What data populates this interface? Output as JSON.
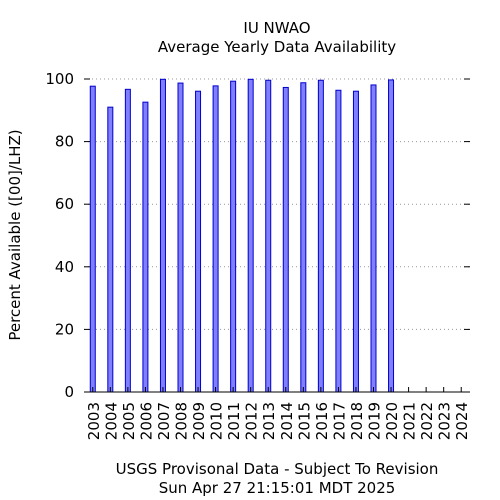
{
  "chart_data": {
    "type": "bar",
    "title": "IU NWAO",
    "subtitle": "Average Yearly Data Availability",
    "ylabel": "Percent Available ([00]/LHZ)",
    "xlabel": "",
    "footer_line1": "USGS Provisonal Data - Subject To Revision",
    "footer_line2": "Sun Apr 27 21:15:01 MDT 2025",
    "categories": [
      "2003",
      "2004",
      "2005",
      "2006",
      "2007",
      "2008",
      "2009",
      "2010",
      "2011",
      "2012",
      "2013",
      "2014",
      "2015",
      "2016",
      "2017",
      "2018",
      "2019",
      "2020",
      "2021",
      "2022",
      "2023",
      "2024"
    ],
    "values": [
      97.7,
      91.0,
      96.7,
      92.6,
      99.9,
      98.7,
      96.1,
      97.8,
      99.3,
      99.9,
      99.6,
      97.3,
      98.8,
      99.6,
      96.4,
      96.1,
      98.1,
      99.7,
      null,
      null,
      null,
      null
    ],
    "ylim": [
      0,
      100
    ],
    "yticks": [
      0,
      20,
      40,
      60,
      80,
      100
    ],
    "grid": true,
    "colors": {
      "bar_fill": "#7f7fff",
      "bar_stroke": "#0000cc",
      "grid": "#999999"
    }
  }
}
